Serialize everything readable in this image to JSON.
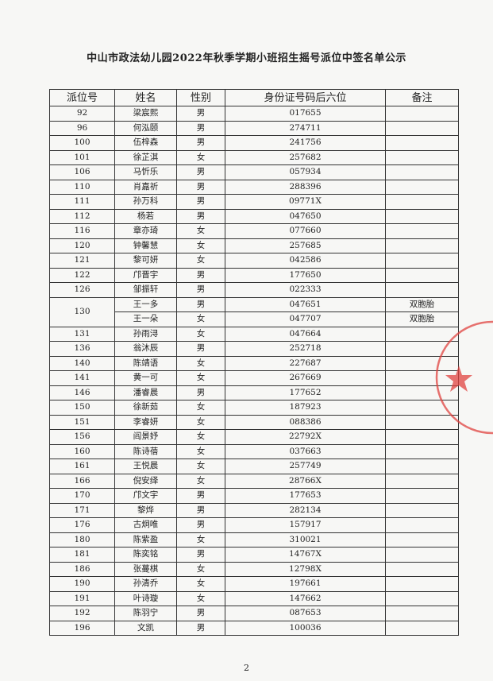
{
  "title": "中山市政法幼儿园2022年秋季学期小班招生摇号派位中签名单公示",
  "table": {
    "headers": [
      "派位号",
      "姓名",
      "性别",
      "身份证号码后六位",
      "备注"
    ],
    "rows": [
      {
        "no": "92",
        "name": "梁宸熙",
        "gender": "男",
        "id": "017655"
      },
      {
        "no": "96",
        "name": "何泓颐",
        "gender": "男",
        "id": "274711"
      },
      {
        "no": "100",
        "name": "伍梓森",
        "gender": "男",
        "id": "241756"
      },
      {
        "no": "101",
        "name": "徐芷淇",
        "gender": "女",
        "id": "257682"
      },
      {
        "no": "106",
        "name": "马忻乐",
        "gender": "男",
        "id": "057934"
      },
      {
        "no": "110",
        "name": "肖嘉祈",
        "gender": "男",
        "id": "288396"
      },
      {
        "no": "111",
        "name": "孙万科",
        "gender": "男",
        "id": "09771X"
      },
      {
        "no": "112",
        "name": "杨若",
        "gender": "男",
        "id": "047650"
      },
      {
        "no": "116",
        "name": "章亦琦",
        "gender": "女",
        "id": "077660"
      },
      {
        "no": "120",
        "name": "钟馨慧",
        "gender": "女",
        "id": "257685"
      },
      {
        "no": "121",
        "name": "黎可妍",
        "gender": "女",
        "id": "042586"
      },
      {
        "no": "122",
        "name": "邝晋宇",
        "gender": "男",
        "id": "177650"
      },
      {
        "no": "126",
        "name": "邹振轩",
        "gender": "男",
        "id": "022333"
      },
      {
        "no": "130",
        "children": [
          {
            "name": "王一多",
            "gender": "男",
            "id": "047651",
            "note": "双胞胎"
          },
          {
            "name": "王一朵",
            "gender": "女",
            "id": "047707",
            "note": "双胞胎"
          }
        ]
      },
      {
        "no": "131",
        "name": "孙雨浔",
        "gender": "女",
        "id": "047664"
      },
      {
        "no": "136",
        "name": "翁沐辰",
        "gender": "男",
        "id": "252718"
      },
      {
        "no": "140",
        "name": "陈靖语",
        "gender": "女",
        "id": "227687"
      },
      {
        "no": "141",
        "name": "黄一可",
        "gender": "女",
        "id": "267669"
      },
      {
        "no": "146",
        "name": "潘睿晨",
        "gender": "男",
        "id": "177652"
      },
      {
        "no": "150",
        "name": "徐新茹",
        "gender": "女",
        "id": "187923"
      },
      {
        "no": "151",
        "name": "李睿妍",
        "gender": "女",
        "id": "088386"
      },
      {
        "no": "156",
        "name": "阎景妤",
        "gender": "女",
        "id": "22792X"
      },
      {
        "no": "160",
        "name": "陈诗蓓",
        "gender": "女",
        "id": "037663"
      },
      {
        "no": "161",
        "name": "王悦晨",
        "gender": "女",
        "id": "257749"
      },
      {
        "no": "166",
        "name": "倪安绎",
        "gender": "女",
        "id": "28766X"
      },
      {
        "no": "170",
        "name": "邝文宇",
        "gender": "男",
        "id": "177653"
      },
      {
        "no": "171",
        "name": "黎烨",
        "gender": "男",
        "id": "282134"
      },
      {
        "no": "176",
        "name": "古炯唯",
        "gender": "男",
        "id": "157917"
      },
      {
        "no": "180",
        "name": "陈紫盈",
        "gender": "女",
        "id": "310021"
      },
      {
        "no": "181",
        "name": "陈奕铭",
        "gender": "男",
        "id": "14767X"
      },
      {
        "no": "186",
        "name": "张蔓棋",
        "gender": "女",
        "id": "12798X"
      },
      {
        "no": "190",
        "name": "孙清乔",
        "gender": "女",
        "id": "197661"
      },
      {
        "no": "191",
        "name": "叶诗璇",
        "gender": "女",
        "id": "147662"
      },
      {
        "no": "192",
        "name": "陈羽宁",
        "gender": "男",
        "id": "087653"
      },
      {
        "no": "196",
        "name": "文凯",
        "gender": "男",
        "id": "100036"
      }
    ]
  },
  "page_number": "2"
}
